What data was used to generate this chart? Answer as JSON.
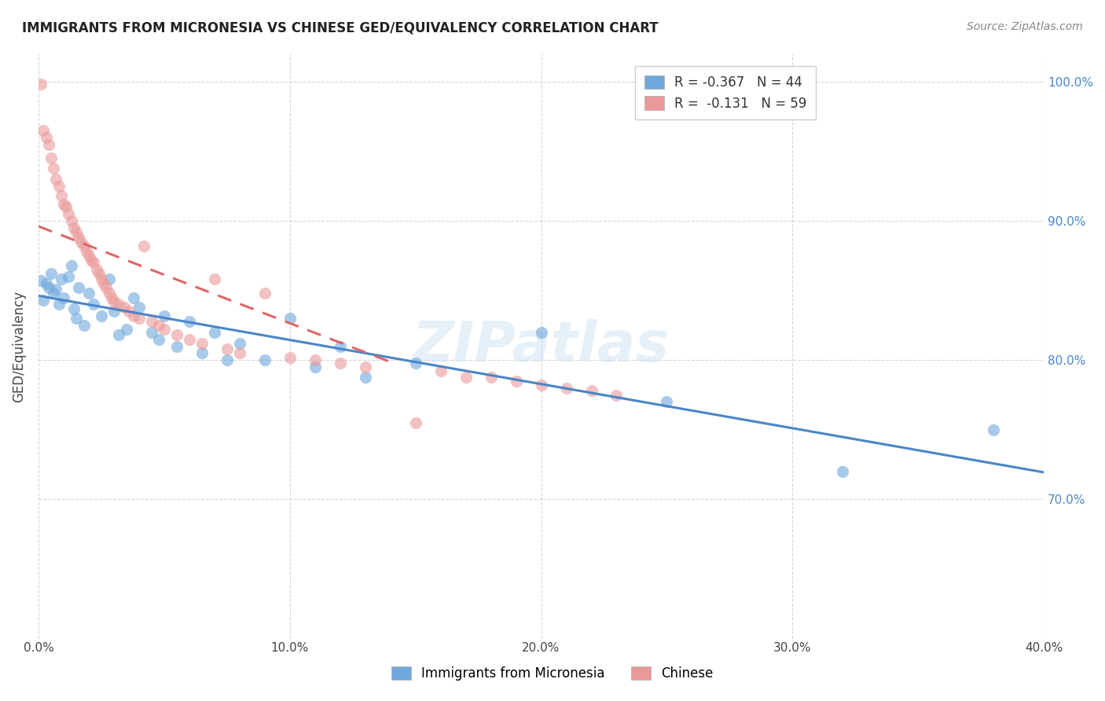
{
  "title": "IMMIGRANTS FROM MICRONESIA VS CHINESE GED/EQUIVALENCY CORRELATION CHART",
  "source": "Source: ZipAtlas.com",
  "ylabel": "GED/Equivalency",
  "legend_line1": "R = -0.367   N = 44",
  "legend_line2": "R =  -0.131   N = 59",
  "watermark": "ZIPatlas",
  "blue_color": "#6fa8dc",
  "pink_color": "#ea9999",
  "blue_line_color": "#4a86c8",
  "pink_line_color": "#e06666",
  "blue_scatter": [
    [
      0.001,
      0.857
    ],
    [
      0.002,
      0.843
    ],
    [
      0.003,
      0.855
    ],
    [
      0.004,
      0.852
    ],
    [
      0.005,
      0.862
    ],
    [
      0.006,
      0.848
    ],
    [
      0.007,
      0.851
    ],
    [
      0.008,
      0.84
    ],
    [
      0.009,
      0.858
    ],
    [
      0.01,
      0.845
    ],
    [
      0.012,
      0.86
    ],
    [
      0.013,
      0.868
    ],
    [
      0.014,
      0.837
    ],
    [
      0.015,
      0.83
    ],
    [
      0.016,
      0.852
    ],
    [
      0.018,
      0.825
    ],
    [
      0.02,
      0.848
    ],
    [
      0.022,
      0.84
    ],
    [
      0.025,
      0.832
    ],
    [
      0.028,
      0.858
    ],
    [
      0.03,
      0.835
    ],
    [
      0.032,
      0.818
    ],
    [
      0.035,
      0.822
    ],
    [
      0.038,
      0.845
    ],
    [
      0.04,
      0.838
    ],
    [
      0.045,
      0.82
    ],
    [
      0.048,
      0.815
    ],
    [
      0.05,
      0.832
    ],
    [
      0.055,
      0.81
    ],
    [
      0.06,
      0.828
    ],
    [
      0.065,
      0.805
    ],
    [
      0.07,
      0.82
    ],
    [
      0.075,
      0.8
    ],
    [
      0.08,
      0.812
    ],
    [
      0.09,
      0.8
    ],
    [
      0.1,
      0.83
    ],
    [
      0.11,
      0.795
    ],
    [
      0.12,
      0.81
    ],
    [
      0.13,
      0.788
    ],
    [
      0.15,
      0.798
    ],
    [
      0.2,
      0.82
    ],
    [
      0.25,
      0.77
    ],
    [
      0.32,
      0.72
    ],
    [
      0.38,
      0.75
    ]
  ],
  "pink_scatter": [
    [
      0.001,
      0.998
    ],
    [
      0.002,
      0.965
    ],
    [
      0.003,
      0.96
    ],
    [
      0.004,
      0.955
    ],
    [
      0.005,
      0.945
    ],
    [
      0.006,
      0.938
    ],
    [
      0.007,
      0.93
    ],
    [
      0.008,
      0.925
    ],
    [
      0.009,
      0.918
    ],
    [
      0.01,
      0.912
    ],
    [
      0.011,
      0.91
    ],
    [
      0.012,
      0.905
    ],
    [
      0.013,
      0.9
    ],
    [
      0.014,
      0.895
    ],
    [
      0.015,
      0.892
    ],
    [
      0.016,
      0.888
    ],
    [
      0.017,
      0.885
    ],
    [
      0.018,
      0.882
    ],
    [
      0.019,
      0.878
    ],
    [
      0.02,
      0.875
    ],
    [
      0.021,
      0.872
    ],
    [
      0.022,
      0.87
    ],
    [
      0.023,
      0.865
    ],
    [
      0.024,
      0.862
    ],
    [
      0.025,
      0.858
    ],
    [
      0.026,
      0.855
    ],
    [
      0.027,
      0.852
    ],
    [
      0.028,
      0.848
    ],
    [
      0.029,
      0.845
    ],
    [
      0.03,
      0.842
    ],
    [
      0.032,
      0.84
    ],
    [
      0.034,
      0.838
    ],
    [
      0.036,
      0.835
    ],
    [
      0.038,
      0.832
    ],
    [
      0.04,
      0.83
    ],
    [
      0.042,
      0.882
    ],
    [
      0.045,
      0.828
    ],
    [
      0.048,
      0.825
    ],
    [
      0.05,
      0.822
    ],
    [
      0.055,
      0.818
    ],
    [
      0.06,
      0.815
    ],
    [
      0.065,
      0.812
    ],
    [
      0.07,
      0.858
    ],
    [
      0.075,
      0.808
    ],
    [
      0.08,
      0.805
    ],
    [
      0.09,
      0.848
    ],
    [
      0.1,
      0.802
    ],
    [
      0.11,
      0.8
    ],
    [
      0.12,
      0.798
    ],
    [
      0.13,
      0.795
    ],
    [
      0.15,
      0.755
    ],
    [
      0.16,
      0.792
    ],
    [
      0.17,
      0.788
    ],
    [
      0.18,
      0.788
    ],
    [
      0.19,
      0.785
    ],
    [
      0.2,
      0.782
    ],
    [
      0.21,
      0.78
    ],
    [
      0.22,
      0.778
    ],
    [
      0.23,
      0.775
    ]
  ],
  "xlim": [
    0.0,
    0.4
  ],
  "ylim": [
    0.6,
    1.02
  ],
  "y_ticks": [
    0.7,
    0.8,
    0.9,
    1.0
  ],
  "x_ticks": [
    0.0,
    0.1,
    0.2,
    0.3,
    0.4
  ],
  "grid_color": "#cccccc",
  "bg_color": "#ffffff"
}
